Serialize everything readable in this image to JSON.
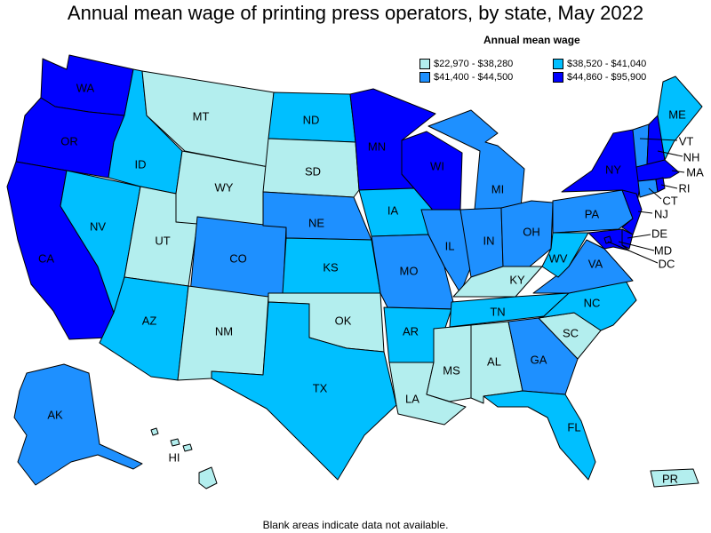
{
  "title": "Annual mean wage of printing press operators, by state, May 2022",
  "legend": {
    "title": "Annual mean wage",
    "bins": [
      {
        "label": "$22,970 - $38,280",
        "color": "#b3eeee"
      },
      {
        "label": "$38,520 - $41,040",
        "color": "#00bfff"
      },
      {
        "label": "$41,400 - $44,500",
        "color": "#1e90ff"
      },
      {
        "label": "$44,860 - $95,900",
        "color": "#0000ff"
      }
    ]
  },
  "footnote": "Blank areas indicate data not available.",
  "states": {
    "WA": {
      "label": "WA",
      "bin": 3
    },
    "OR": {
      "label": "OR",
      "bin": 3
    },
    "CA": {
      "label": "CA",
      "bin": 3
    },
    "ID": {
      "label": "ID",
      "bin": 1
    },
    "NV": {
      "label": "NV",
      "bin": 1
    },
    "MT": {
      "label": "MT",
      "bin": 0
    },
    "WY": {
      "label": "WY",
      "bin": 0
    },
    "UT": {
      "label": "UT",
      "bin": 0
    },
    "AZ": {
      "label": "AZ",
      "bin": 1
    },
    "CO": {
      "label": "CO",
      "bin": 2
    },
    "NM": {
      "label": "NM",
      "bin": 0
    },
    "ND": {
      "label": "ND",
      "bin": 1
    },
    "SD": {
      "label": "SD",
      "bin": 0
    },
    "NE": {
      "label": "NE",
      "bin": 2
    },
    "KS": {
      "label": "KS",
      "bin": 1
    },
    "OK": {
      "label": "OK",
      "bin": 0
    },
    "TX": {
      "label": "TX",
      "bin": 1
    },
    "MN": {
      "label": "MN",
      "bin": 3
    },
    "IA": {
      "label": "IA",
      "bin": 1
    },
    "MO": {
      "label": "MO",
      "bin": 2
    },
    "AR": {
      "label": "AR",
      "bin": 1
    },
    "LA": {
      "label": "LA",
      "bin": 0
    },
    "WI": {
      "label": "WI",
      "bin": 3
    },
    "IL": {
      "label": "IL",
      "bin": 2
    },
    "MI": {
      "label": "MI",
      "bin": 2
    },
    "IN": {
      "label": "IN",
      "bin": 2
    },
    "OH": {
      "label": "OH",
      "bin": 2
    },
    "KY": {
      "label": "KY",
      "bin": 0
    },
    "TN": {
      "label": "TN",
      "bin": 1
    },
    "MS": {
      "label": "MS",
      "bin": 0
    },
    "AL": {
      "label": "AL",
      "bin": 0
    },
    "GA": {
      "label": "GA",
      "bin": 2
    },
    "FL": {
      "label": "FL",
      "bin": 1
    },
    "SC": {
      "label": "SC",
      "bin": 0
    },
    "NC": {
      "label": "NC",
      "bin": 1
    },
    "VA": {
      "label": "VA",
      "bin": 2
    },
    "WV": {
      "label": "WV",
      "bin": 1
    },
    "PA": {
      "label": "PA",
      "bin": 2
    },
    "NY": {
      "label": "NY",
      "bin": 3
    },
    "VT": {
      "label": "VT",
      "bin": 2
    },
    "NH": {
      "label": "NH",
      "bin": 3
    },
    "ME": {
      "label": "ME",
      "bin": 1
    },
    "MA": {
      "label": "MA",
      "bin": 3
    },
    "RI": {
      "label": "RI",
      "bin": 3
    },
    "CT": {
      "label": "CT",
      "bin": 2
    },
    "NJ": {
      "label": "NJ",
      "bin": 3
    },
    "DE": {
      "label": "DE",
      "bin": 3
    },
    "MD": {
      "label": "MD",
      "bin": 3
    },
    "DC": {
      "label": "DC",
      "bin": 3
    },
    "AK": {
      "label": "AK",
      "bin": 2
    },
    "HI": {
      "label": "HI",
      "bin": 0
    },
    "PR": {
      "label": "PR",
      "bin": 0
    }
  }
}
